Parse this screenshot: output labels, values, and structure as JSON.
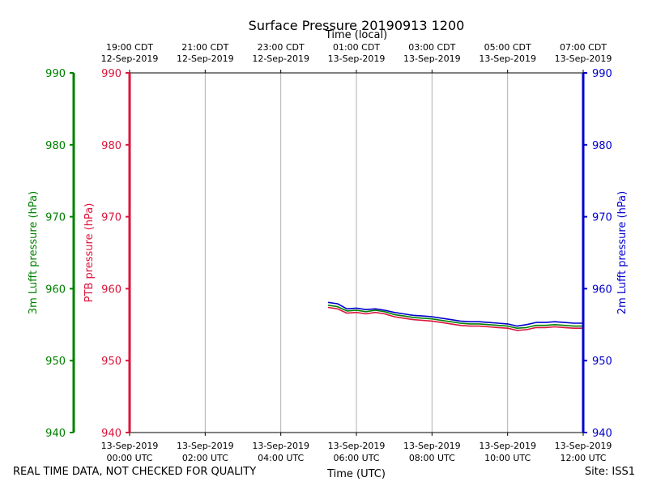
{
  "chart_data": {
    "type": "line",
    "title": "Surface Pressure 20190913 1200",
    "top_axis_label": "Time (local)",
    "bottom_axis_label": "Time (UTC)",
    "x_unit": "hours since 00:00 UTC 13-Sep-2019",
    "xlim": [
      0,
      12
    ],
    "top_ticks": [
      {
        "x": 0,
        "line1": "19:00 CDT",
        "line2": "12-Sep-2019"
      },
      {
        "x": 2,
        "line1": "21:00 CDT",
        "line2": "12-Sep-2019"
      },
      {
        "x": 4,
        "line1": "23:00 CDT",
        "line2": "12-Sep-2019"
      },
      {
        "x": 6,
        "line1": "01:00 CDT",
        "line2": "13-Sep-2019"
      },
      {
        "x": 8,
        "line1": "03:00 CDT",
        "line2": "13-Sep-2019"
      },
      {
        "x": 10,
        "line1": "05:00 CDT",
        "line2": "13-Sep-2019"
      },
      {
        "x": 12,
        "line1": "07:00 CDT",
        "line2": "13-Sep-2019"
      }
    ],
    "bottom_ticks": [
      {
        "x": 0,
        "line1": "13-Sep-2019",
        "line2": "00:00 UTC"
      },
      {
        "x": 2,
        "line1": "13-Sep-2019",
        "line2": "02:00 UTC"
      },
      {
        "x": 4,
        "line1": "13-Sep-2019",
        "line2": "04:00 UTC"
      },
      {
        "x": 6,
        "line1": "13-Sep-2019",
        "line2": "06:00 UTC"
      },
      {
        "x": 8,
        "line1": "13-Sep-2019",
        "line2": "08:00 UTC"
      },
      {
        "x": 10,
        "line1": "13-Sep-2019",
        "line2": "10:00 UTC"
      },
      {
        "x": 12,
        "line1": "13-Sep-2019",
        "line2": "12:00 UTC"
      }
    ],
    "y_axes": [
      {
        "id": "lufft3m",
        "label": "3m Lufft pressure (hPa)",
        "color": "#008000",
        "ylim": [
          940,
          990
        ],
        "ticks": [
          940,
          950,
          960,
          970,
          980,
          990
        ]
      },
      {
        "id": "ptb",
        "label": "PTB pressure (hPa)",
        "color": "#dc143c",
        "ylim": [
          940,
          990
        ],
        "ticks": [
          940,
          950,
          960,
          970,
          980,
          990
        ]
      },
      {
        "id": "lufft2m",
        "label": "2m Lufft pressure (hPa)",
        "color": "#0000cd",
        "ylim": [
          940,
          990
        ],
        "ticks": [
          940,
          950,
          960,
          970,
          980,
          990
        ]
      }
    ],
    "grid": "vertical",
    "series": [
      {
        "name": "PTB pressure",
        "color": "#dc143c",
        "x": [
          5.25,
          5.5,
          5.75,
          6.0,
          6.25,
          6.5,
          6.75,
          7.0,
          7.25,
          7.5,
          7.75,
          8.0,
          8.25,
          8.5,
          8.75,
          9.0,
          9.25,
          9.5,
          9.75,
          10.0,
          10.25,
          10.5,
          10.75,
          11.0,
          11.25,
          11.5,
          11.75,
          12.0
        ],
        "y": [
          957.4,
          957.2,
          956.6,
          956.7,
          956.5,
          956.7,
          956.5,
          956.1,
          955.9,
          955.7,
          955.6,
          955.5,
          955.3,
          955.1,
          954.9,
          954.8,
          954.8,
          954.7,
          954.6,
          954.5,
          954.2,
          954.3,
          954.6,
          954.6,
          954.7,
          954.6,
          954.5,
          954.5
        ]
      },
      {
        "name": "3m Lufft pressure",
        "color": "#008000",
        "x": [
          5.25,
          5.5,
          5.75,
          6.0,
          6.25,
          6.5,
          6.75,
          7.0,
          7.25,
          7.5,
          7.75,
          8.0,
          8.25,
          8.5,
          8.75,
          9.0,
          9.25,
          9.5,
          9.75,
          10.0,
          10.25,
          10.5,
          10.75,
          11.0,
          11.25,
          11.5,
          11.75,
          12.0
        ],
        "y": [
          957.7,
          957.5,
          956.9,
          957.0,
          956.8,
          957.0,
          956.8,
          956.4,
          956.2,
          956.0,
          955.9,
          955.8,
          955.6,
          955.4,
          955.2,
          955.1,
          955.1,
          955.0,
          954.9,
          954.8,
          954.5,
          954.6,
          954.9,
          954.9,
          955.0,
          954.9,
          954.8,
          954.8
        ]
      },
      {
        "name": "2m Lufft pressure",
        "color": "#0000cd",
        "x": [
          5.25,
          5.5,
          5.75,
          6.0,
          6.25,
          6.5,
          6.75,
          7.0,
          7.25,
          7.5,
          7.75,
          8.0,
          8.25,
          8.5,
          8.75,
          9.0,
          9.25,
          9.5,
          9.75,
          10.0,
          10.25,
          10.5,
          10.75,
          11.0,
          11.25,
          11.5,
          11.75,
          12.0
        ],
        "y": [
          958.1,
          957.9,
          957.2,
          957.3,
          957.1,
          957.2,
          957.0,
          956.7,
          956.5,
          956.3,
          956.2,
          956.1,
          955.9,
          955.7,
          955.5,
          955.4,
          955.4,
          955.3,
          955.2,
          955.1,
          954.8,
          955.0,
          955.3,
          955.3,
          955.4,
          955.3,
          955.2,
          955.2
        ]
      }
    ]
  },
  "footer": {
    "left": "REAL TIME DATA, NOT CHECKED FOR QUALITY",
    "right": "Site: ISS1"
  }
}
